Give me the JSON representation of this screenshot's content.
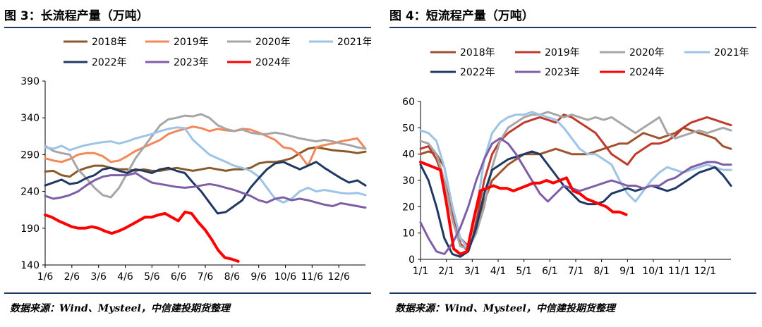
{
  "left": {
    "title": "图 3：长流程产量（万吨）",
    "source": "数据来源：Wind、Mysteel，中信建投期货整理",
    "chart_data": {
      "type": "line",
      "title": "长流程产量（万吨）",
      "xlabel": "",
      "ylabel": "",
      "ylim": [
        140,
        390
      ],
      "yticks": [
        140,
        190,
        240,
        290,
        340,
        390
      ],
      "xticks": [
        "1/6",
        "2/6",
        "3/6",
        "4/6",
        "5/6",
        "6/6",
        "7/6",
        "8/6",
        "9/6",
        "10/6",
        "11/6",
        "12/6"
      ],
      "x_unit": "week",
      "x_range": [
        1,
        52
      ],
      "grid": false,
      "legend_position": "top",
      "series": [
        {
          "name": "2018年",
          "color": "#8b5a2b",
          "values": [
            267,
            268,
            262,
            260,
            268,
            272,
            275,
            275,
            272,
            270,
            270,
            268,
            270,
            268,
            268,
            270,
            272,
            270,
            268,
            270,
            272,
            270,
            268,
            270,
            270,
            272,
            278,
            280,
            280,
            282,
            285,
            292,
            298,
            300,
            298,
            296,
            295,
            294,
            292,
            294
          ]
        },
        {
          "name": "2019年",
          "color": "#f4875a",
          "values": [
            285,
            282,
            280,
            284,
            290,
            292,
            292,
            288,
            280,
            282,
            288,
            295,
            300,
            305,
            310,
            318,
            322,
            325,
            328,
            326,
            322,
            325,
            323,
            322,
            325,
            324,
            320,
            315,
            310,
            300,
            298,
            290,
            275,
            300,
            303,
            305,
            308,
            310,
            312,
            298
          ]
        },
        {
          "name": "2020年",
          "color": "#a6a6a6",
          "values": [
            302,
            295,
            292,
            290,
            270,
            258,
            245,
            235,
            232,
            245,
            265,
            285,
            300,
            315,
            330,
            338,
            340,
            343,
            342,
            345,
            340,
            330,
            325,
            322,
            324,
            320,
            318,
            318,
            320,
            318,
            315,
            312,
            310,
            308,
            310,
            308,
            305,
            303,
            300,
            298
          ]
        },
        {
          "name": "2021年",
          "color": "#9dc3e6",
          "values": [
            300,
            298,
            302,
            296,
            300,
            303,
            305,
            307,
            308,
            305,
            308,
            312,
            315,
            318,
            322,
            325,
            327,
            326,
            310,
            300,
            290,
            285,
            280,
            275,
            272,
            268,
            260,
            245,
            230,
            225,
            230,
            240,
            245,
            240,
            242,
            240,
            238,
            237,
            238,
            235
          ]
        },
        {
          "name": "2022年",
          "color": "#1f3864",
          "values": [
            248,
            252,
            256,
            250,
            252,
            258,
            262,
            270,
            272,
            268,
            265,
            270,
            268,
            265,
            270,
            272,
            268,
            265,
            252,
            240,
            225,
            210,
            212,
            220,
            228,
            245,
            258,
            270,
            278,
            280,
            275,
            270,
            275,
            280,
            272,
            265,
            258,
            252,
            255,
            248
          ]
        },
        {
          "name": "2023年",
          "color": "#7f5ea8",
          "values": [
            234,
            230,
            232,
            235,
            240,
            248,
            255,
            260,
            262,
            262,
            262,
            265,
            258,
            252,
            250,
            248,
            246,
            245,
            246,
            248,
            250,
            248,
            245,
            242,
            238,
            234,
            228,
            225,
            230,
            232,
            228,
            230,
            228,
            225,
            222,
            220,
            224,
            222,
            220,
            218
          ]
        },
        {
          "name": "2024年",
          "color": "#ff0000",
          "values": [
            208,
            205,
            200,
            196,
            192,
            190,
            190,
            192,
            190,
            186,
            183,
            186,
            190,
            195,
            200,
            205,
            205,
            208,
            210,
            205,
            200,
            212,
            210,
            198,
            188,
            175,
            160,
            150,
            148,
            145
          ]
        }
      ]
    }
  },
  "right": {
    "title": "图 4：短流程产量（万吨）",
    "source": "数据来源：Wind、Mysteel，中信建投期货整理",
    "chart_data": {
      "type": "line",
      "title": "短流程产量（万吨）",
      "xlabel": "",
      "ylabel": "",
      "ylim": [
        0,
        60
      ],
      "yticks": [
        0,
        10,
        20,
        30,
        40,
        50,
        60
      ],
      "xticks": [
        "1/1",
        "2/1",
        "3/1",
        "4/1",
        "5/1",
        "6/1",
        "7/1",
        "8/1",
        "9/1",
        "10/1",
        "11/1",
        "12/1"
      ],
      "xtick_labels_display": [
        "1/1",
        "2/1",
        "3/1",
        "4/1",
        "5/1",
        "6/1",
        "7/1",
        "8/1",
        "9/1",
        "10/1",
        "11/1",
        "12/1"
      ],
      "x_unit": "week",
      "x_range": [
        1,
        52
      ],
      "grid": false,
      "legend_position": "top",
      "series": [
        {
          "name": "2018年",
          "color": "#a0522d",
          "values": [
            40,
            41,
            40,
            35,
            20,
            8,
            5,
            12,
            22,
            30,
            33,
            36,
            38,
            40,
            40,
            40,
            41,
            42,
            41,
            40,
            40,
            40,
            41,
            42,
            43,
            44,
            44,
            46,
            48,
            47,
            46,
            47,
            48,
            50,
            49,
            48,
            47,
            46,
            43,
            42
          ]
        },
        {
          "name": "2019年",
          "color": "#c0392b",
          "values": [
            42,
            43,
            38,
            30,
            18,
            6,
            3,
            15,
            30,
            40,
            45,
            48,
            50,
            52,
            53,
            54,
            53,
            52,
            55,
            54,
            52,
            50,
            48,
            44,
            40,
            38,
            36,
            40,
            42,
            44,
            44,
            45,
            47,
            50,
            52,
            53,
            54,
            53,
            52,
            51
          ]
        },
        {
          "name": "2020年",
          "color": "#a6a6a6",
          "values": [
            45,
            44,
            40,
            30,
            15,
            5,
            4,
            10,
            20,
            35,
            45,
            50,
            52,
            54,
            55,
            55,
            56,
            55,
            54,
            55,
            54,
            53,
            54,
            53,
            54,
            52,
            50,
            48,
            50,
            52,
            54,
            48,
            46,
            47,
            48,
            49,
            48,
            49,
            50,
            49
          ]
        },
        {
          "name": "2021年",
          "color": "#9dc3e6",
          "values": [
            49,
            48,
            45,
            35,
            20,
            8,
            4,
            18,
            38,
            48,
            52,
            54,
            55,
            55,
            56,
            55,
            54,
            53,
            50,
            46,
            42,
            40,
            40,
            38,
            36,
            30,
            25,
            22,
            26,
            30,
            33,
            35,
            34,
            33,
            34,
            35,
            36,
            35,
            34,
            34
          ]
        },
        {
          "name": "2022年",
          "color": "#1f3864",
          "values": [
            36,
            30,
            20,
            8,
            2,
            1,
            3,
            12,
            25,
            34,
            36,
            38,
            39,
            40,
            41,
            40,
            36,
            32,
            28,
            25,
            22,
            21,
            21,
            22,
            25,
            26,
            27,
            26,
            27,
            28,
            27,
            26,
            27,
            29,
            31,
            33,
            34,
            35,
            32,
            28
          ]
        },
        {
          "name": "2023年",
          "color": "#7f5ea8",
          "values": [
            14,
            8,
            3,
            2,
            6,
            12,
            20,
            30,
            38,
            44,
            46,
            44,
            40,
            35,
            30,
            25,
            22,
            25,
            28,
            27,
            26,
            27,
            28,
            29,
            30,
            29,
            28,
            28,
            27,
            28,
            28,
            30,
            31,
            33,
            35,
            36,
            37,
            37,
            36,
            36
          ]
        },
        {
          "name": "2024年",
          "color": "#ff0000",
          "values": [
            37,
            36,
            35,
            34,
            20,
            4,
            2,
            3,
            15,
            26,
            27,
            28,
            27,
            27,
            26,
            27,
            28,
            29,
            29,
            30,
            29,
            30,
            31,
            26,
            25,
            23,
            22,
            21,
            20,
            18,
            18,
            17
          ]
        }
      ]
    }
  }
}
